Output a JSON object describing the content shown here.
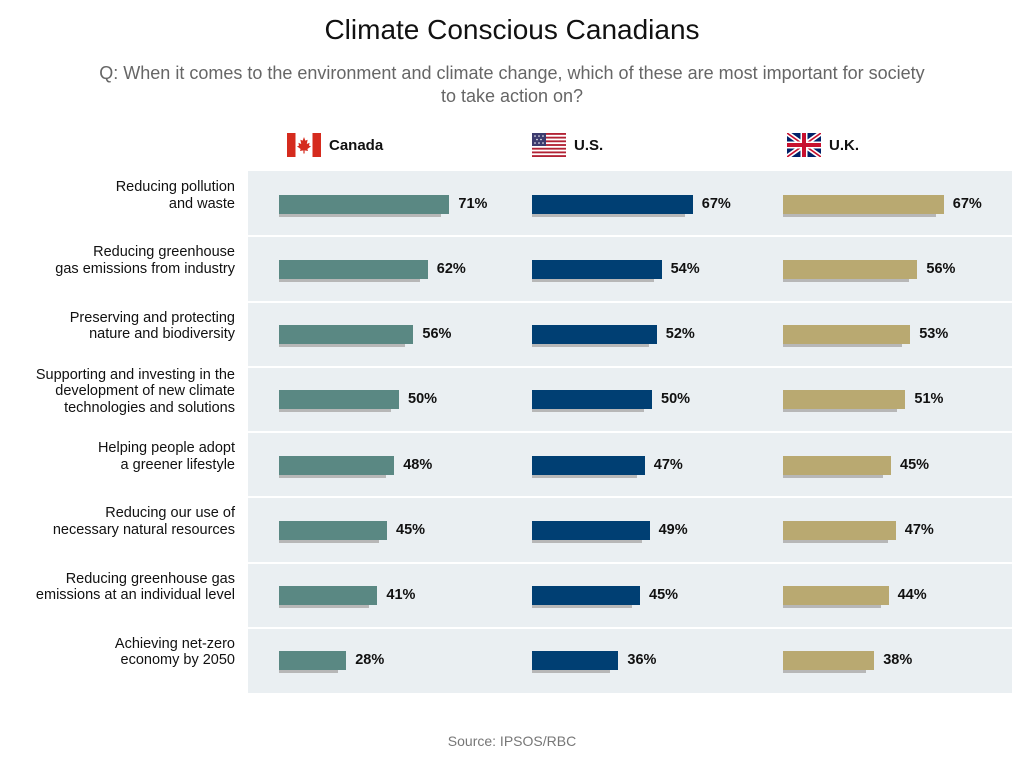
{
  "chart_data": {
    "type": "bar",
    "title": "Climate Conscious Canadians",
    "subtitle": "Q: When it comes to the environment and climate change, which of these are most important for society to take action on?",
    "source": "Source: IPSOS/RBC",
    "value_suffix": "%",
    "categories": [
      "Reducing pollution\nand waste",
      "Reducing greenhouse\ngas emissions from industry",
      "Preserving and protecting\nnature and biodiversity",
      "Supporting and investing in the\ndevelopment of new climate\ntechnologies and solutions",
      "Helping people adopt\na greener lifestyle",
      "Reducing our use of\nnecessary natural resources",
      "Reducing greenhouse gas\nemissions at an individual level",
      "Achieving net-zero\neconomy by 2050"
    ],
    "series": [
      {
        "name": "Canada",
        "flag": "canada-flag-icon",
        "color": "#5a8883",
        "values": [
          71,
          62,
          56,
          50,
          48,
          45,
          41,
          28
        ]
      },
      {
        "name": "U.S.",
        "flag": "us-flag-icon",
        "color": "#003f73",
        "values": [
          67,
          54,
          52,
          50,
          47,
          49,
          45,
          36
        ]
      },
      {
        "name": "U.K.",
        "flag": "uk-flag-icon",
        "color": "#b9a971",
        "values": [
          67,
          56,
          53,
          51,
          45,
          47,
          44,
          38
        ]
      }
    ],
    "ylim": [
      0,
      100
    ]
  }
}
